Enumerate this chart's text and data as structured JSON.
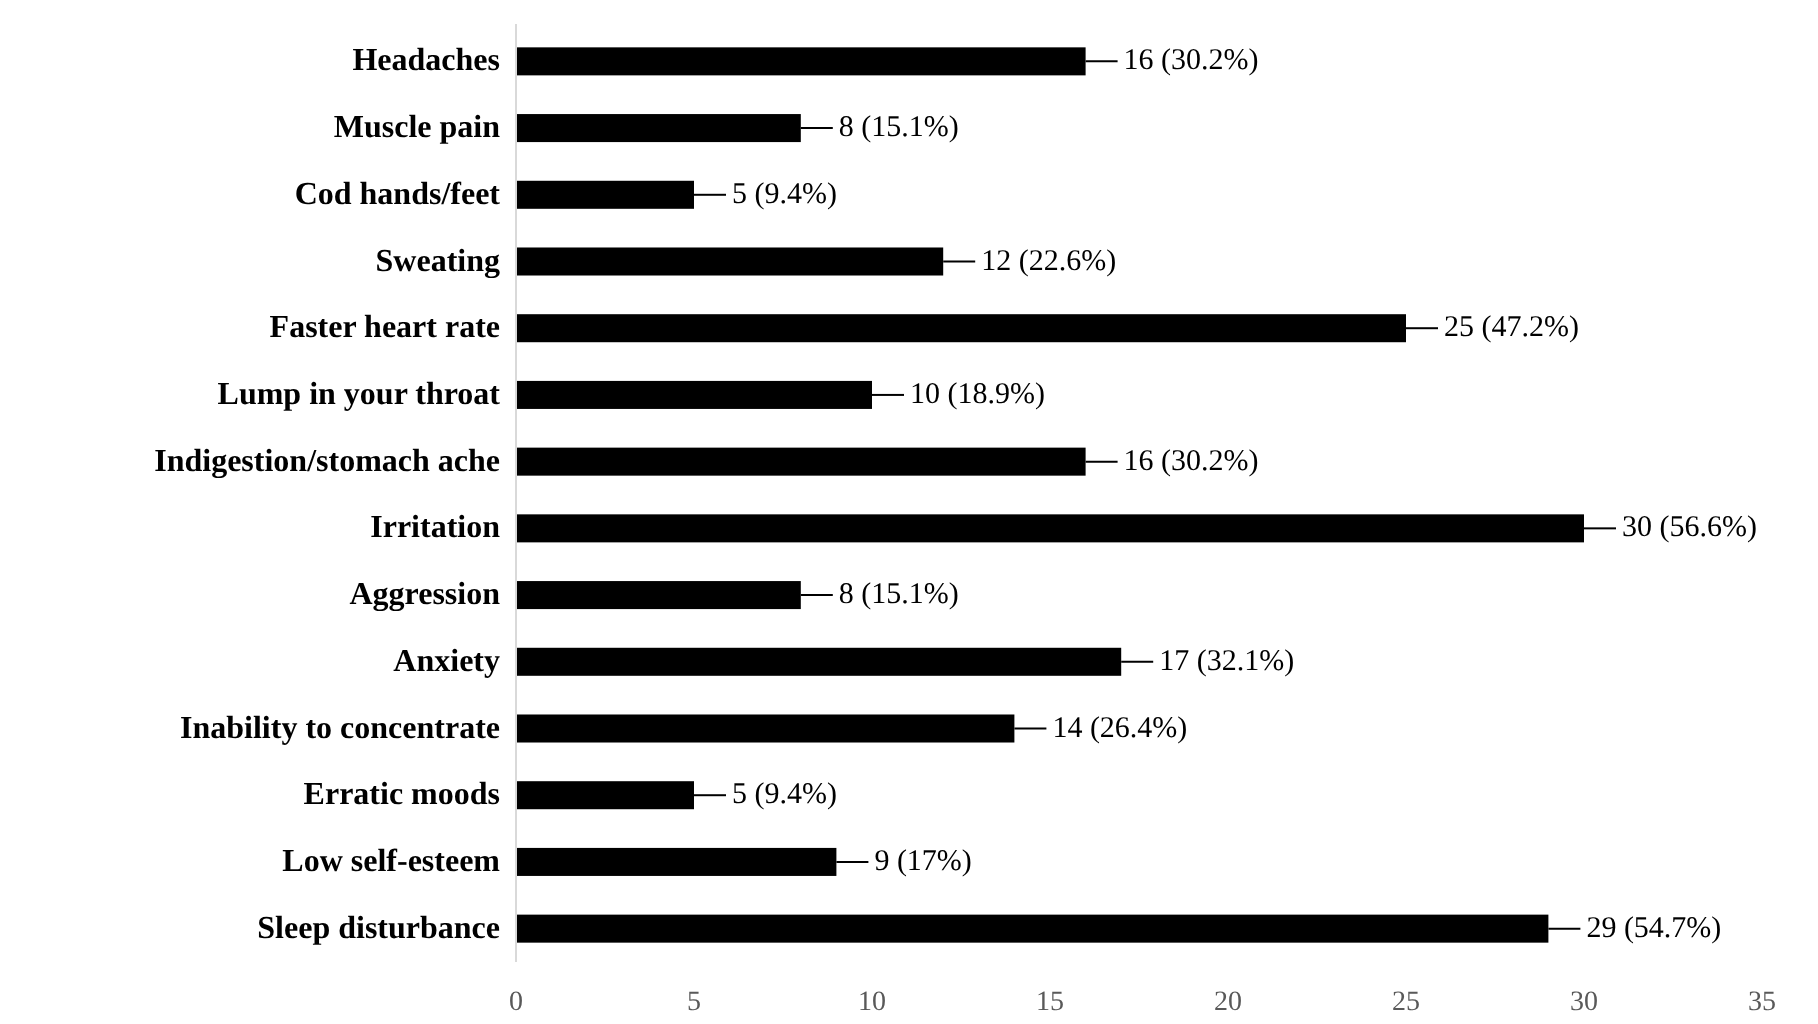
{
  "chart_data": {
    "type": "bar",
    "orientation": "horizontal",
    "categories": [
      "Headaches",
      "Muscle pain",
      "Cod hands/feet",
      "Sweating",
      "Faster heart rate",
      "Lump in your throat",
      "Indigestion/stomach ache",
      "Irritation",
      "Aggression",
      "Anxiety",
      "Inability to concentrate",
      "Erratic moods",
      "Low self-esteem",
      "Sleep disturbance"
    ],
    "values": [
      16,
      8,
      5,
      12,
      25,
      10,
      16,
      30,
      8,
      17,
      14,
      5,
      9,
      29
    ],
    "value_labels": [
      "16 (30.2%)",
      "8 (15.1%)",
      "5 (9.4%)",
      "12 (22.6%)",
      "25 (47.2%)",
      "10 (18.9%)",
      "16 (30.2%)",
      "30 (56.6%)",
      "8 (15.1%)",
      "17 (32.1%)",
      "14 (26.4%)",
      "5 (9.4%)",
      "9 (17%)",
      "29 (54.7%)"
    ],
    "color": "#000000",
    "xlim": [
      0,
      35
    ],
    "xticks": [
      0,
      5,
      10,
      15,
      20,
      25,
      30,
      35
    ],
    "grid": false
  }
}
